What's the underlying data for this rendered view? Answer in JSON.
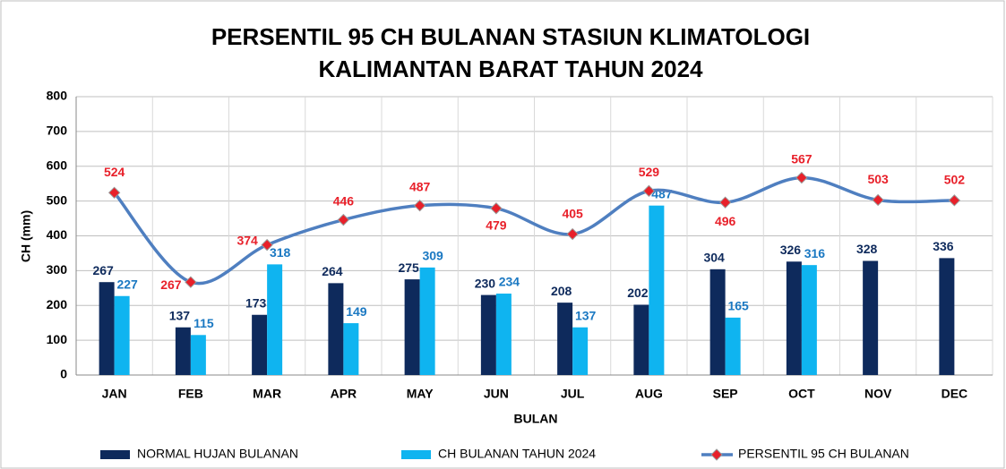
{
  "chart_data": {
    "type": "bar-line",
    "title": [
      "PERSENTIL 95 CH BULANAN STASIUN KLIMATOLOGI",
      "KALIMANTAN BARAT TAHUN 2024"
    ],
    "x_label": "BULAN",
    "y_label": "CH (mm)",
    "categories": [
      "JAN",
      "FEB",
      "MAR",
      "APR",
      "MAY",
      "JUN",
      "JUL",
      "AUG",
      "SEP",
      "OCT",
      "NOV",
      "DEC"
    ],
    "series": [
      {
        "name": "NORMAL HUJAN BULANAN",
        "type": "bar",
        "color": "#0e2a5c",
        "label_color": "#0e2a5c",
        "values": [
          267,
          137,
          173,
          264,
          275,
          230,
          208,
          202,
          304,
          326,
          328,
          336
        ]
      },
      {
        "name": "CH BULANAN TAHUN 2024",
        "type": "bar",
        "color": "#0fb4f0",
        "label_color": "#1a78c2",
        "values": [
          227,
          115,
          318,
          149,
          309,
          234,
          137,
          487,
          165,
          316,
          null,
          null
        ]
      },
      {
        "name": "PERSENTIL 95 CH BULANAN",
        "type": "line",
        "color": "#4f7fc0",
        "marker_color": "#e8202a",
        "label_color": "#e8202a",
        "values": [
          524,
          267,
          374,
          446,
          487,
          479,
          405,
          529,
          496,
          567,
          503,
          502
        ]
      }
    ],
    "ylim": [
      0,
      800
    ],
    "yticks": [
      0,
      100,
      200,
      300,
      400,
      500,
      600,
      700,
      800
    ],
    "grid": true,
    "legend": "bottom"
  }
}
